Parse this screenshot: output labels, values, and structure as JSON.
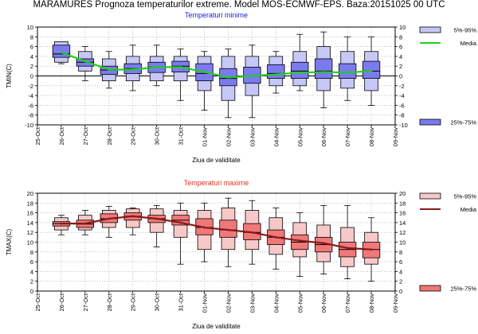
{
  "title": "MARAMURES  Prognoza temperaturilor extreme.  Model MOS-ECMWF-EPS. Baza:20151025 00 UTC",
  "colors": {
    "min_box": "#7b7bef",
    "min_box_light": "#c7c7f7",
    "min_line": "#22cc22",
    "min_title": "#2020d0",
    "max_box": "#f07878",
    "max_box_light": "#f8c8c8",
    "max_line": "#8b1a1a",
    "max_title": "#e03020",
    "grid": "#9a9a9a"
  },
  "chart_data": [
    {
      "type": "box",
      "title": "Temperaturi minime",
      "ylabel": "TMIN(C)",
      "xlabel": "Ziua de validitate",
      "ylim": [
        -10,
        10
      ],
      "yticks": [
        -10,
        -8,
        -6,
        -4,
        -2,
        0,
        2,
        4,
        6,
        8,
        10
      ],
      "categories": [
        "25-Oct",
        "26-Oct",
        "27-Oct",
        "28-Oct",
        "29-Oct",
        "30-Oct",
        "31-Oct",
        "01-Nov",
        "02-Nov",
        "03-Nov",
        "04-Nov",
        "05-Nov",
        "06-Nov",
        "07-Nov",
        "08-Nov",
        "09-Nov"
      ],
      "legend": {
        "p5_95": "5%-95%",
        "mean": "Media",
        "p25_75": "25%-75%"
      },
      "boxes": [
        {
          "x": "26-Oct",
          "p5": 2.8,
          "p25": 3.8,
          "median": 4.5,
          "p75": 6.3,
          "p95": 7.0,
          "min": 2.5,
          "max": 7.0
        },
        {
          "x": "27-Oct",
          "p5": 1.0,
          "p25": 2.0,
          "median": 2.8,
          "p75": 3.5,
          "p95": 5.0,
          "min": -1.0,
          "max": 6.0
        },
        {
          "x": "28-Oct",
          "p5": -1.0,
          "p25": 0.3,
          "median": 1.2,
          "p75": 2.0,
          "p95": 3.5,
          "min": -2.5,
          "max": 5.0
        },
        {
          "x": "29-Oct",
          "p5": -1.0,
          "p25": 0.5,
          "median": 1.5,
          "p75": 2.5,
          "p95": 4.0,
          "min": -3.0,
          "max": 6.3
        },
        {
          "x": "30-Oct",
          "p5": -1.0,
          "p25": 0.7,
          "median": 1.8,
          "p75": 2.8,
          "p95": 4.0,
          "min": -2.0,
          "max": 6.3
        },
        {
          "x": "31-Oct",
          "p5": -1.0,
          "p25": 0.8,
          "median": 2.0,
          "p75": 3.0,
          "p95": 4.0,
          "min": -5.0,
          "max": 5.5
        },
        {
          "x": "01-Nov",
          "p5": -3.0,
          "p25": -1.0,
          "median": 0.5,
          "p75": 2.5,
          "p95": 4.0,
          "min": -7.0,
          "max": 5.0
        },
        {
          "x": "02-Nov",
          "p5": -5.0,
          "p25": -2.0,
          "median": -0.5,
          "p75": 1.5,
          "p95": 4.0,
          "min": -8.5,
          "max": 5.5
        },
        {
          "x": "03-Nov",
          "p5": -4.0,
          "p25": -1.5,
          "median": 0.0,
          "p75": 1.8,
          "p95": 4.0,
          "min": -8.5,
          "max": 6.3
        },
        {
          "x": "04-Nov",
          "p5": -2.0,
          "p25": -0.5,
          "median": 0.5,
          "p75": 2.3,
          "p95": 4.0,
          "min": -3.5,
          "max": 5.0
        },
        {
          "x": "05-Nov",
          "p5": -2.0,
          "p25": -0.5,
          "median": 1.0,
          "p75": 2.8,
          "p95": 5.0,
          "min": -3.0,
          "max": 8.5
        },
        {
          "x": "06-Nov",
          "p5": -3.0,
          "p25": -0.5,
          "median": 1.0,
          "p75": 3.5,
          "p95": 6.0,
          "min": -6.5,
          "max": 9.0
        },
        {
          "x": "07-Nov",
          "p5": -2.5,
          "p25": -0.5,
          "median": 0.8,
          "p75": 2.5,
          "p95": 5.0,
          "min": -5.0,
          "max": 8.0
        },
        {
          "x": "08-Nov",
          "p5": -3.0,
          "p25": -0.5,
          "median": 1.0,
          "p75": 3.0,
          "p95": 5.0,
          "min": -6.0,
          "max": 8.0
        }
      ],
      "mean": [
        {
          "x": "26-Oct",
          "y": 4.8
        },
        {
          "x": "27-Oct",
          "y": 3.0
        },
        {
          "x": "28-Oct",
          "y": 1.3
        },
        {
          "x": "29-Oct",
          "y": 1.3
        },
        {
          "x": "30-Oct",
          "y": 1.8
        },
        {
          "x": "31-Oct",
          "y": 1.8
        },
        {
          "x": "01-Nov",
          "y": 0.8
        },
        {
          "x": "02-Nov",
          "y": -0.3
        },
        {
          "x": "03-Nov",
          "y": 0.0
        },
        {
          "x": "04-Nov",
          "y": 0.3
        },
        {
          "x": "05-Nov",
          "y": 0.7
        },
        {
          "x": "06-Nov",
          "y": 0.8
        },
        {
          "x": "07-Nov",
          "y": 0.7
        },
        {
          "x": "08-Nov",
          "y": 1.0
        }
      ]
    },
    {
      "type": "box",
      "title": "Temperaturi maxime",
      "ylabel": "TMAX(C)",
      "xlabel": "Ziua de validitate",
      "ylim": [
        0,
        20
      ],
      "yticks": [
        0,
        2,
        4,
        6,
        8,
        10,
        12,
        14,
        16,
        18,
        20
      ],
      "categories": [
        "25-Oct",
        "26-Oct",
        "27-Oct",
        "28-Oct",
        "29-Oct",
        "30-Oct",
        "31-Oct",
        "01-Nov",
        "02-Nov",
        "03-Nov",
        "04-Nov",
        "05-Nov",
        "06-Nov",
        "07-Nov",
        "08-Nov",
        "09-Nov"
      ],
      "legend": {
        "p5_95": "5%-95%",
        "mean": "Media",
        "p25_75": "25%-75%"
      },
      "boxes": [
        {
          "x": "26-Oct",
          "p5": 12.5,
          "p25": 13.3,
          "median": 13.8,
          "p75": 14.2,
          "p95": 15.0,
          "min": 11.5,
          "max": 15.5
        },
        {
          "x": "27-Oct",
          "p5": 12.5,
          "p25": 13.0,
          "median": 13.7,
          "p75": 14.5,
          "p95": 15.5,
          "min": 11.5,
          "max": 16.5
        },
        {
          "x": "28-Oct",
          "p5": 13.0,
          "p25": 14.0,
          "median": 14.8,
          "p75": 15.8,
          "p95": 16.5,
          "min": 11.0,
          "max": 17.3
        },
        {
          "x": "29-Oct",
          "p5": 13.0,
          "p25": 14.5,
          "median": 15.3,
          "p75": 16.0,
          "p95": 16.8,
          "min": 11.5,
          "max": 17.0
        },
        {
          "x": "30-Oct",
          "p5": 12.0,
          "p25": 14.0,
          "median": 14.8,
          "p75": 15.5,
          "p95": 16.8,
          "min": 9.0,
          "max": 17.5
        },
        {
          "x": "31-Oct",
          "p5": 11.0,
          "p25": 13.5,
          "median": 14.5,
          "p75": 15.5,
          "p95": 16.5,
          "min": 5.5,
          "max": 18.0
        },
        {
          "x": "01-Nov",
          "p5": 8.5,
          "p25": 11.5,
          "median": 13.0,
          "p75": 14.8,
          "p95": 16.5,
          "min": 6.0,
          "max": 18.0
        },
        {
          "x": "02-Nov",
          "p5": 8.5,
          "p25": 11.0,
          "median": 12.5,
          "p75": 14.5,
          "p95": 17.0,
          "min": 5.0,
          "max": 19.0
        },
        {
          "x": "03-Nov",
          "p5": 8.5,
          "p25": 10.5,
          "median": 12.0,
          "p75": 13.8,
          "p95": 16.5,
          "min": 5.5,
          "max": 18.5
        },
        {
          "x": "04-Nov",
          "p5": 7.5,
          "p25": 9.5,
          "median": 11.0,
          "p75": 12.5,
          "p95": 15.0,
          "min": 4.5,
          "max": 17.0
        },
        {
          "x": "05-Nov",
          "p5": 7.0,
          "p25": 8.5,
          "median": 10.0,
          "p75": 11.5,
          "p95": 14.0,
          "min": 3.0,
          "max": 16.0
        },
        {
          "x": "06-Nov",
          "p5": 6.0,
          "p25": 8.0,
          "median": 9.5,
          "p75": 11.0,
          "p95": 13.5,
          "min": 3.5,
          "max": 17.5
        },
        {
          "x": "07-Nov",
          "p5": 5.0,
          "p25": 7.0,
          "median": 8.5,
          "p75": 10.0,
          "p95": 13.0,
          "min": 2.5,
          "max": 17.5
        },
        {
          "x": "08-Nov",
          "p5": 5.5,
          "p25": 6.8,
          "median": 8.5,
          "p75": 10.0,
          "p95": 12.0,
          "min": 2.0,
          "max": 15.0
        }
      ],
      "mean": [
        {
          "x": "26-Oct",
          "y": 13.8
        },
        {
          "x": "27-Oct",
          "y": 13.8
        },
        {
          "x": "28-Oct",
          "y": 14.8
        },
        {
          "x": "29-Oct",
          "y": 15.3
        },
        {
          "x": "30-Oct",
          "y": 14.8
        },
        {
          "x": "31-Oct",
          "y": 14.0
        },
        {
          "x": "01-Nov",
          "y": 13.0
        },
        {
          "x": "02-Nov",
          "y": 12.5
        },
        {
          "x": "03-Nov",
          "y": 12.0
        },
        {
          "x": "04-Nov",
          "y": 11.0
        },
        {
          "x": "05-Nov",
          "y": 10.3
        },
        {
          "x": "06-Nov",
          "y": 9.8
        },
        {
          "x": "07-Nov",
          "y": 8.8
        },
        {
          "x": "08-Nov",
          "y": 8.5
        }
      ]
    }
  ]
}
